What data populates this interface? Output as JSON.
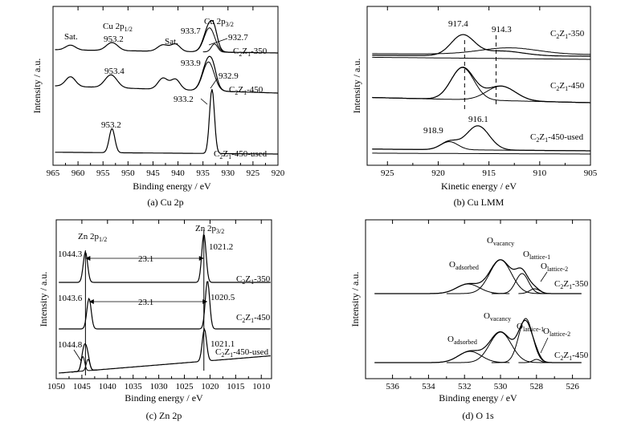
{
  "chart_data": [
    {
      "type": "line",
      "caption": "(a) Cu 2p",
      "xlabel": "Binding energy / eV",
      "ylabel": "Intensity / a.u.",
      "xlim": [
        965,
        920
      ],
      "xticks": [
        965,
        960,
        955,
        950,
        945,
        940,
        935,
        930,
        925,
        920
      ],
      "series": [
        {
          "name": "C2Z1-350"
        },
        {
          "name": "C2Z1-450"
        },
        {
          "name": "C2Z1-450-used"
        }
      ],
      "annotations": [
        {
          "id": "cu2p12",
          "text": "Cu 2p",
          "sub": "1/2"
        },
        {
          "id": "cu2p32",
          "text": "Cu 2p",
          "sub": "3/2"
        },
        {
          "id": "sat1",
          "text": "Sat."
        },
        {
          "id": "sat2",
          "text": "Sat."
        },
        {
          "id": "a350_9532",
          "text": "953.2"
        },
        {
          "id": "a350_9337",
          "text": "933.7"
        },
        {
          "id": "a350_9327",
          "text": "932.7"
        },
        {
          "id": "a450_9534",
          "text": "953.4"
        },
        {
          "id": "a450_9339",
          "text": "933.9"
        },
        {
          "id": "a450_9329",
          "text": "932.9"
        },
        {
          "id": "aused_9332",
          "text": "933.2"
        },
        {
          "id": "aused_9532",
          "text": "953.2"
        }
      ]
    },
    {
      "type": "line",
      "caption": "(b) Cu LMM",
      "xlabel": "Kinetic energy / eV",
      "ylabel": "Intensity / a.u.",
      "xlim": [
        927,
        905
      ],
      "xticks": [
        925,
        920,
        915,
        910,
        905
      ],
      "series": [
        {
          "name": "C2Z1-350"
        },
        {
          "name": "C2Z1-450"
        },
        {
          "name": "C2Z1-450-used"
        }
      ],
      "annotations": [
        {
          "id": "b9174",
          "text": "917.4"
        },
        {
          "id": "b9143",
          "text": "914.3"
        },
        {
          "id": "b9189",
          "text": "918.9"
        },
        {
          "id": "b9161",
          "text": "916.1"
        }
      ]
    },
    {
      "type": "line",
      "caption": "(c) Zn 2p",
      "xlabel": "Binding energy / eV",
      "ylabel": "Intensity / a.u.",
      "xlim": [
        1050,
        1008
      ],
      "xticks": [
        1050,
        1045,
        1040,
        1035,
        1030,
        1025,
        1020,
        1015,
        1010
      ],
      "series": [
        {
          "name": "C2Z1-350"
        },
        {
          "name": "C2Z1-450"
        },
        {
          "name": "C2Z1-450-used"
        }
      ],
      "annotations": [
        {
          "id": "zn2p12",
          "text": "Zn 2p",
          "sub": "1/2"
        },
        {
          "id": "zn2p32",
          "text": "Zn 2p",
          "sub": "3/2"
        },
        {
          "id": "c10443",
          "text": "1044.3"
        },
        {
          "id": "c10212",
          "text": "1021.2"
        },
        {
          "id": "c231a",
          "text": "23.1"
        },
        {
          "id": "c10436",
          "text": "1043.6"
        },
        {
          "id": "c10205",
          "text": "1020.5"
        },
        {
          "id": "c231b",
          "text": "23.1"
        },
        {
          "id": "c10448",
          "text": "1044.8"
        },
        {
          "id": "c10211",
          "text": "1021.1"
        }
      ]
    },
    {
      "type": "line",
      "caption": "(d) O 1s",
      "xlabel": "Binding energy / eV",
      "ylabel": "Intensity / a.u.",
      "xlim": [
        537.5,
        525
      ],
      "xticks": [
        536,
        534,
        532,
        530,
        528,
        526
      ],
      "series": [
        {
          "name": "C2Z1-350"
        },
        {
          "name": "C2Z1-450"
        }
      ],
      "annotations": [
        {
          "id": "d_ov1",
          "text": "O",
          "sub": "vacancy"
        },
        {
          "id": "d_ol11",
          "text": "O",
          "sub": "lattice-1"
        },
        {
          "id": "d_oa1",
          "text": "O",
          "sub": "adsorbed"
        },
        {
          "id": "d_ol21",
          "text": "O",
          "sub": "lattice-2"
        },
        {
          "id": "d_ov2",
          "text": "O",
          "sub": "vacancy"
        },
        {
          "id": "d_ol12",
          "text": "O",
          "sub": "lattice-1"
        },
        {
          "id": "d_oa2",
          "text": "O",
          "sub": "adsorbed"
        },
        {
          "id": "d_ol22",
          "text": "O",
          "sub": "lattice-2"
        }
      ]
    }
  ]
}
